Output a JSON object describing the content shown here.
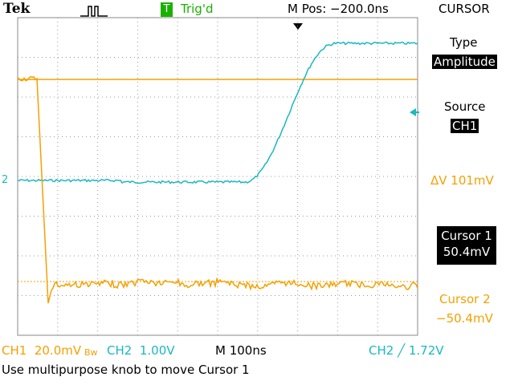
{
  "header": {
    "brand": "Tek",
    "trigger_badge": "T",
    "trigger_status": "Trig'd",
    "position": "M Pos: −200.0ns",
    "menu_title": "CURSOR"
  },
  "menu": {
    "type_label": "Type",
    "type_value": "Amplitude",
    "source_label": "Source",
    "source_value": "CH1",
    "delta": "ΔV 101mV",
    "cursor1_label": "Cursor 1",
    "cursor1_value": "50.4mV",
    "cursor2_label": "Cursor 2",
    "cursor2_value": "−50.4mV"
  },
  "screen": {
    "ch2_marker": "2"
  },
  "footer": {
    "ch1": "CH1  20.0mV",
    "ch1_bw": "Bw",
    "ch2": "CH2  1.00V",
    "timebase": "M 100ns",
    "trigger": "CH2 ╱ 1.72V"
  },
  "status": "Use multipurpose knob to move Cursor 1"
}
